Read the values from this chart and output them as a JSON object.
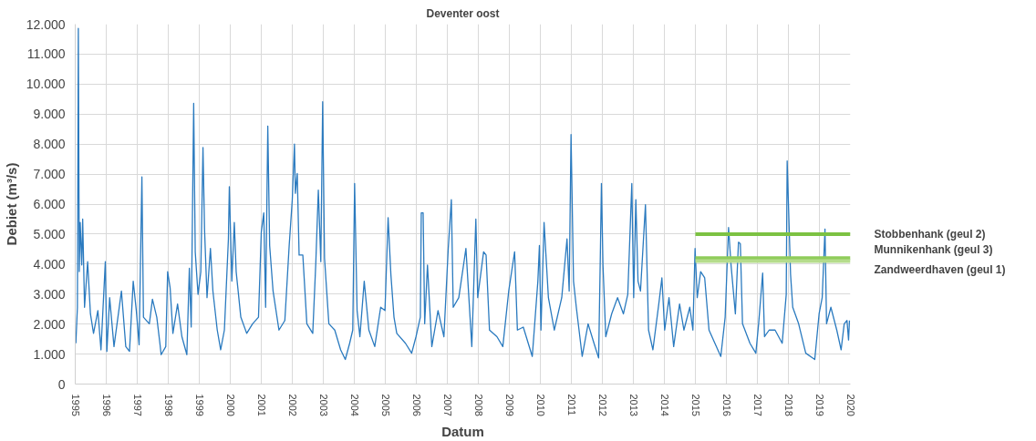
{
  "chart_data": {
    "type": "line",
    "title": "Deventer oost",
    "xlabel": "Datum",
    "ylabel": "Debiet (m³/s)",
    "xlim": [
      1995,
      2020
    ],
    "xticks": [
      1995,
      1996,
      1997,
      1998,
      1999,
      2000,
      2001,
      2002,
      2003,
      2004,
      2005,
      2006,
      2007,
      2008,
      2009,
      2010,
      2011,
      2012,
      2013,
      2014,
      2015,
      2016,
      2017,
      2018,
      2019,
      2020
    ],
    "ylim": [
      0,
      12000
    ],
    "yticks": [
      0,
      {
        "value": 1000,
        "label": "1.000"
      },
      {
        "value": 2000,
        "label": "2.000"
      },
      {
        "value": 3000,
        "label": "3.000"
      },
      {
        "value": 4000,
        "label": "4.000"
      },
      {
        "value": 5000,
        "label": "5.000"
      },
      {
        "value": 6000,
        "label": "6.000"
      },
      {
        "value": 7000,
        "label": "7.000"
      },
      {
        "value": 8000,
        "label": "8.000"
      },
      {
        "value": 9000,
        "label": "9.000"
      },
      {
        "value": 10000,
        "label": "10.000"
      },
      {
        "value": 11000,
        "label": "11.000"
      },
      {
        "value": 12000,
        "label": "12.000"
      }
    ],
    "grid": true,
    "legend": false,
    "marker": "none",
    "line_style": "solid",
    "series": [
      {
        "color": "#2a7abf",
        "x": [
          1995.02,
          1995.07,
          1995.1,
          1995.13,
          1995.16,
          1995.21,
          1995.24,
          1995.3,
          1995.4,
          1995.49,
          1995.59,
          1995.73,
          1995.83,
          1995.97,
          1996.02,
          1996.11,
          1996.25,
          1996.49,
          1996.63,
          1996.75,
          1996.87,
          1996.97,
          1997.06,
          1997.15,
          1997.2,
          1997.39,
          1997.49,
          1997.63,
          1997.73,
          1997.77,
          1997.92,
          1997.98,
          1998.06,
          1998.15,
          1998.3,
          1998.44,
          1998.6,
          1998.68,
          1998.74,
          1998.82,
          1998.87,
          1998.96,
          1999.05,
          1999.12,
          1999.17,
          1999.25,
          1999.36,
          1999.44,
          1999.58,
          1999.69,
          1999.81,
          1999.94,
          1999.97,
          2000.05,
          2000.13,
          2000.19,
          2000.34,
          2000.53,
          2000.72,
          2000.91,
          2001.0,
          2001.08,
          2001.14,
          2001.21,
          2001.27,
          2001.38,
          2001.57,
          2001.76,
          2001.9,
          2002.0,
          2002.07,
          2002.1,
          2002.16,
          2002.22,
          2002.34,
          2002.47,
          2002.66,
          2002.76,
          2002.84,
          2002.92,
          2002.98,
          2003.04,
          2003.18,
          2003.37,
          2003.56,
          2003.71,
          2003.85,
          2003.95,
          2004.01,
          2004.09,
          2004.18,
          2004.32,
          2004.47,
          2004.66,
          2004.85,
          2004.99,
          2005.09,
          2005.18,
          2005.28,
          2005.37,
          2005.65,
          2005.85,
          2005.99,
          2006.13,
          2006.16,
          2006.22,
          2006.27,
          2006.36,
          2006.5,
          2006.7,
          2006.89,
          2007.03,
          2007.13,
          2007.19,
          2007.37,
          2007.6,
          2007.79,
          2007.92,
          2007.98,
          2008.17,
          2008.25,
          2008.36,
          2008.6,
          2008.79,
          2008.98,
          2009.17,
          2009.26,
          2009.45,
          2009.74,
          2009.92,
          2009.97,
          2010.02,
          2010.12,
          2010.26,
          2010.45,
          2010.69,
          2010.86,
          2010.93,
          2010.99,
          2011.07,
          2011.16,
          2011.35,
          2011.54,
          2011.73,
          2011.88,
          2011.94,
          2011.97,
          2012.02,
          2012.11,
          2012.3,
          2012.49,
          2012.68,
          2012.82,
          2012.95,
          2013.01,
          2013.08,
          2013.15,
          2013.23,
          2013.39,
          2013.49,
          2013.63,
          2013.82,
          2013.92,
          2014.01,
          2014.15,
          2014.3,
          2014.49,
          2014.63,
          2014.82,
          2014.92,
          2014.99,
          2015.06,
          2015.17,
          2015.3,
          2015.44,
          2015.63,
          2015.82,
          2015.96,
          2016.07,
          2016.15,
          2016.29,
          2016.39,
          2016.45,
          2016.52,
          2016.76,
          2016.95,
          2017.04,
          2017.17,
          2017.23,
          2017.38,
          2017.57,
          2017.8,
          2017.93,
          2017.96,
          2018.07,
          2018.14,
          2018.33,
          2018.56,
          2018.85,
          2018.99,
          2019.09,
          2019.18,
          2019.23,
          2019.37,
          2019.56,
          2019.7,
          2019.8,
          2019.89,
          2019.94,
          2019.97
        ],
        "values": [
          1360,
          2560,
          11860,
          3750,
          5390,
          3970,
          5500,
          2560,
          4080,
          2340,
          1690,
          2450,
          1140,
          4080,
          1090,
          2880,
          1250,
          3100,
          1250,
          1090,
          3430,
          2450,
          1310,
          6910,
          2230,
          2010,
          2830,
          2230,
          1360,
          980,
          1250,
          3750,
          3210,
          1690,
          2670,
          1580,
          980,
          3860,
          1900,
          9360,
          4410,
          2990,
          3750,
          7890,
          5170,
          2880,
          4520,
          3100,
          1800,
          1140,
          1800,
          4840,
          6580,
          3430,
          5390,
          3750,
          2230,
          1690,
          2010,
          2230,
          5060,
          5710,
          2560,
          8600,
          4620,
          3100,
          1800,
          2120,
          4620,
          6150,
          8000,
          6360,
          7020,
          4300,
          4300,
          2010,
          1690,
          4080,
          6470,
          4080,
          9410,
          4190,
          2010,
          1800,
          1140,
          820,
          1360,
          1800,
          6690,
          2450,
          1580,
          3430,
          1800,
          1250,
          2560,
          2450,
          5550,
          3650,
          2230,
          1690,
          1360,
          1030,
          1580,
          2230,
          5710,
          5710,
          2010,
          3970,
          1250,
          2450,
          1580,
          4520,
          6150,
          2560,
          2880,
          4520,
          1250,
          5500,
          2880,
          4410,
          4300,
          1800,
          1580,
          1250,
          3100,
          4410,
          1800,
          1900,
          920,
          3430,
          4620,
          1800,
          5390,
          2880,
          1800,
          2880,
          4840,
          3100,
          8320,
          3430,
          2560,
          920,
          2010,
          1360,
          870,
          4620,
          6690,
          3970,
          1580,
          2340,
          2880,
          2340,
          2990,
          6690,
          2880,
          6150,
          3430,
          3100,
          5980,
          1800,
          1140,
          2670,
          3540,
          1800,
          2880,
          1250,
          2670,
          1800,
          2560,
          1800,
          4520,
          2880,
          3750,
          3540,
          1800,
          1360,
          920,
          2230,
          5220,
          3970,
          2340,
          4730,
          4680,
          2010,
          1360,
          1030,
          2010,
          3700,
          1580,
          1800,
          1800,
          1360,
          2990,
          7440,
          3650,
          2560,
          2010,
          1030,
          820,
          2340,
          2880,
          5170,
          2010,
          2560,
          1800,
          1140,
          2010,
          2120,
          1470,
          2120
        ]
      },
      {
        "name": "Stobbenhank (geul 2)",
        "color": "#7cc242",
        "x": [
          2015,
          2020
        ],
        "values": [
          5000,
          5000
        ]
      },
      {
        "name": "Munnikenhank (geul 3)",
        "color": "#8fcc5a",
        "x": [
          2015,
          2020
        ],
        "values": [
          4200,
          4200
        ]
      },
      {
        "name": "Zandweerdhaven (geul 1)",
        "color": "#b5dc8c",
        "x": [
          2015,
          2020
        ],
        "values": [
          4100,
          4100
        ]
      }
    ]
  }
}
